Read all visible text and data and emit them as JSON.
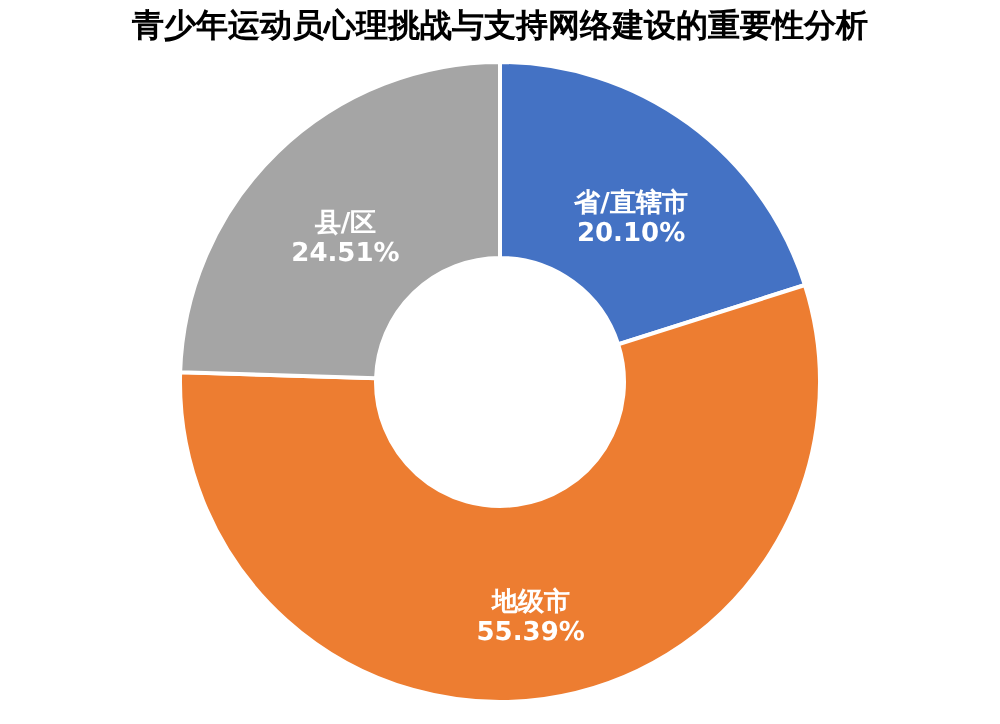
{
  "chart_data": {
    "type": "donut",
    "title": "青少年运动员心理挑战与支持网络建设的重要性分析",
    "categories": [
      "省/直辖市",
      "地级市",
      "县/区"
    ],
    "values": [
      20.1,
      55.39,
      24.51
    ],
    "colors": [
      "#4472c4",
      "#ed7d31",
      "#a5a5a5"
    ],
    "value_labels": [
      "20.10%",
      "55.39%",
      "24.51%"
    ],
    "legend": false
  }
}
